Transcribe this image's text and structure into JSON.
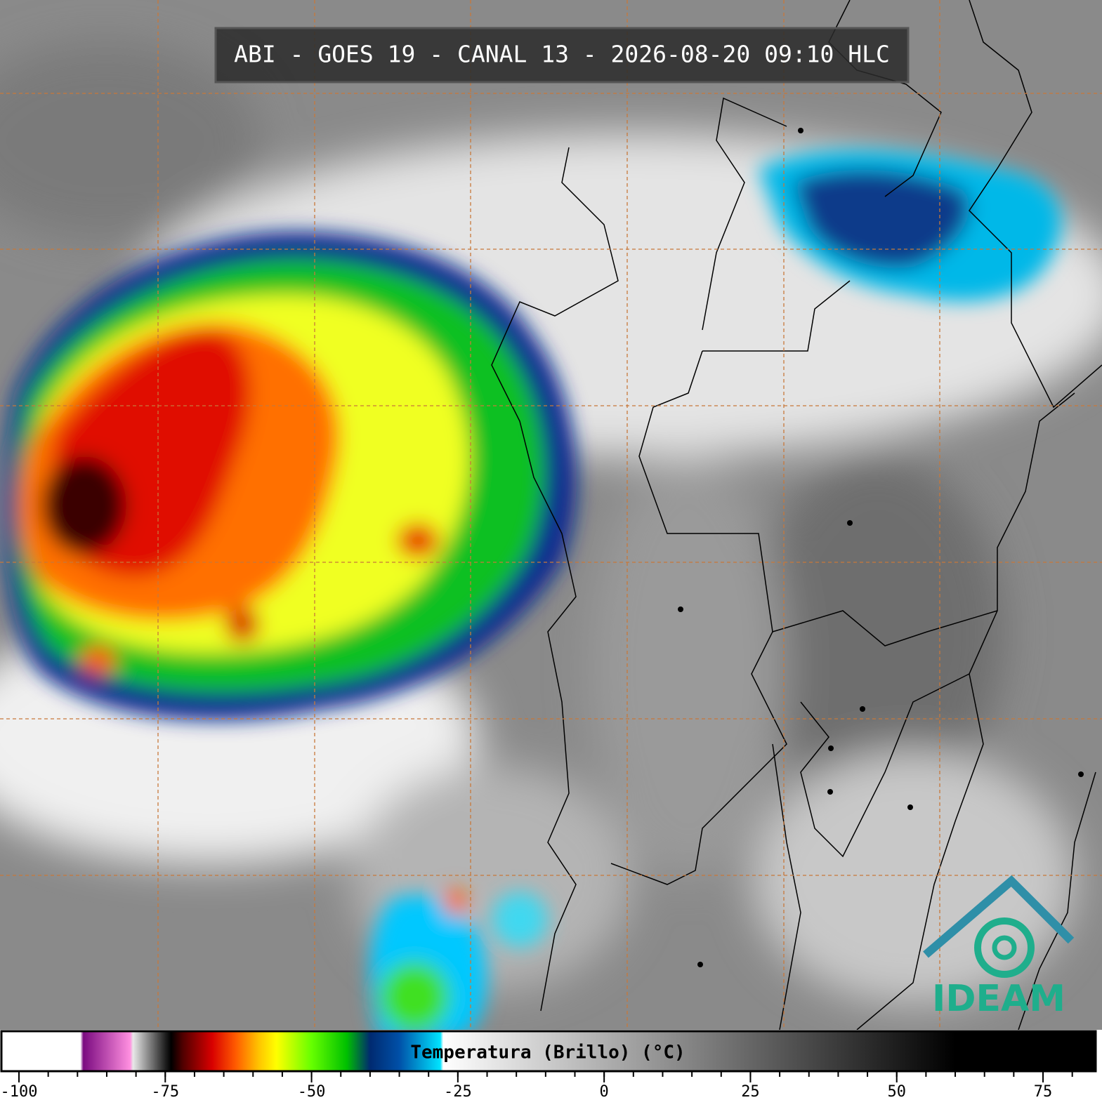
{
  "title": "ABI - GOES 19 - CANAL 13 - 2026-08-20 09:10 HLC",
  "logo": "IDEAM",
  "colorbar": {
    "type": "colorbar",
    "label": "Temperatura (Brillo) (°C)",
    "xlim": [
      -103,
      84
    ],
    "xticks": [
      -100,
      -75,
      -50,
      -25,
      0,
      25,
      50,
      75
    ],
    "minor_tick_step": 5,
    "stops": [
      {
        "value": -103,
        "color": "#ffffff"
      },
      {
        "value": -89.5,
        "color": "#ffffff"
      },
      {
        "value": -89,
        "color": "#7a0a80"
      },
      {
        "value": -81,
        "color": "#ff90e0"
      },
      {
        "value": -80.5,
        "color": "#e8e8e8"
      },
      {
        "value": -75,
        "color": "#202020"
      },
      {
        "value": -74,
        "color": "#000000"
      },
      {
        "value": -72,
        "color": "#500000"
      },
      {
        "value": -67,
        "color": "#d80000"
      },
      {
        "value": -63,
        "color": "#ff5a00"
      },
      {
        "value": -59,
        "color": "#ffc400"
      },
      {
        "value": -56,
        "color": "#ffff00"
      },
      {
        "value": -50,
        "color": "#66ff00"
      },
      {
        "value": -44,
        "color": "#00c000"
      },
      {
        "value": -40,
        "color": "#002a70"
      },
      {
        "value": -35,
        "color": "#0050a8"
      },
      {
        "value": -28,
        "color": "#00e4ff"
      },
      {
        "value": -27.5,
        "color": "#ffffff"
      },
      {
        "value": 60,
        "color": "#000000"
      },
      {
        "value": 84,
        "color": "#000000"
      }
    ]
  }
}
